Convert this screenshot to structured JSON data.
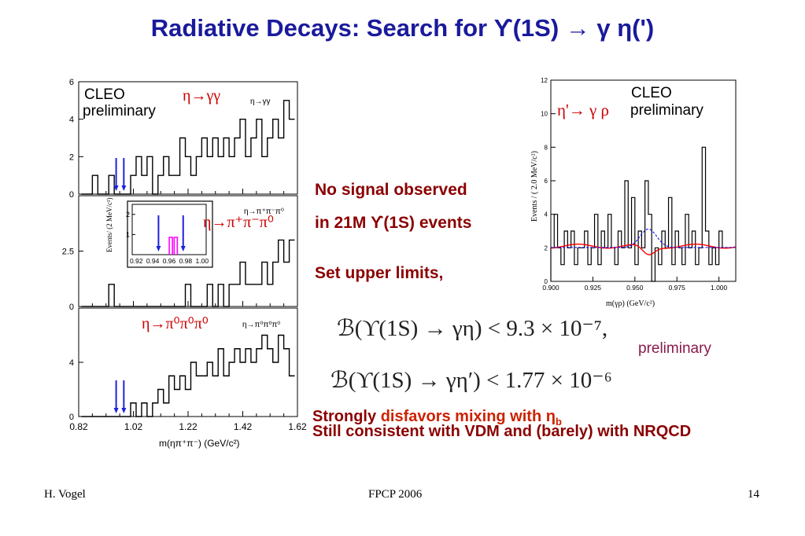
{
  "slide": {
    "title": "Radiative Decays:  Search for  ϒ(1S) → γ η(')",
    "obs_line1": "No signal observed",
    "obs_line2": "in  21M  ϒ(1S) events",
    "obs_line3": "Set upper limits,",
    "formula1": "ℬ(ϒ(1S) → γη) < 9.3 × 10⁻⁷,",
    "formula2": "ℬ(ϒ(1S) → γη′) < 1.77 × 10⁻⁶",
    "preliminary": "preliminary",
    "conclusion1_a": "Strongly",
    "conclusion1_b": "disfavors mixing with η",
    "conclusion1_sub": "b",
    "conclusion2": "Still consistent with VDM and (barely) with NRQCD"
  },
  "footer": {
    "author": "H. Vogel",
    "conference": "FPCP 2006",
    "page": "14"
  },
  "left_plot": {
    "label_cleo": "CLEO",
    "label_prelim": "preliminary",
    "panel1_channel": "η→γγ",
    "panel1_small": "η→γγ",
    "panel2_channel": "η→π⁺π⁻π⁰",
    "panel2_small": "η→π⁺π⁻π⁰",
    "panel3_channel": "η→π⁰π⁰π⁰",
    "panel3_small": "η→π⁰π⁰π⁰",
    "inset_ylabel": "Events/ (2 MeV/c²)",
    "xlabel": "m(ηπ⁺π⁻)  (GeV/c²)",
    "colors": {
      "arrows": "#2020e0",
      "channel": "#cc0000",
      "inset_peak": "#ff00ff"
    }
  },
  "chart_data": [
    {
      "type": "histogram",
      "title": "η→γγ",
      "x_range": [
        0.82,
        1.62
      ],
      "ylim": [
        0,
        6
      ],
      "y_ticks": [
        "0",
        "2",
        "4",
        "6"
      ],
      "x": [
        0.84,
        0.86,
        0.88,
        0.9,
        0.92,
        0.94,
        0.96,
        0.98,
        1.0,
        1.02,
        1.04,
        1.06,
        1.08,
        1.1,
        1.12,
        1.14,
        1.16,
        1.18,
        1.2,
        1.22,
        1.24,
        1.26,
        1.28,
        1.3,
        1.32,
        1.34,
        1.36,
        1.38,
        1.4,
        1.42,
        1.44,
        1.46,
        1.48,
        1.5,
        1.52,
        1.54,
        1.56,
        1.58,
        1.6
      ],
      "values": [
        0,
        0,
        1,
        0,
        0,
        1,
        0,
        0,
        0,
        1,
        2,
        1,
        2,
        0,
        1,
        2,
        1,
        1,
        3,
        2,
        1,
        2,
        3,
        2,
        3,
        2,
        3,
        2,
        3,
        4,
        2,
        3,
        4,
        2,
        3,
        4,
        3,
        5,
        4
      ],
      "arrows_at": [
        0.957,
        0.985
      ]
    },
    {
      "type": "histogram",
      "title": "η→π⁺π⁻π⁰",
      "x_range": [
        0.82,
        1.62
      ],
      "ylim": [
        0,
        5
      ],
      "y_ticks": [
        "0",
        "2.5"
      ],
      "x": [
        0.84,
        0.86,
        0.88,
        0.9,
        0.92,
        0.94,
        0.96,
        0.98,
        1.0,
        1.02,
        1.04,
        1.06,
        1.08,
        1.1,
        1.12,
        1.14,
        1.16,
        1.18,
        1.2,
        1.22,
        1.24,
        1.26,
        1.28,
        1.3,
        1.32,
        1.34,
        1.36,
        1.38,
        1.4,
        1.42,
        1.44,
        1.46,
        1.48,
        1.5,
        1.52,
        1.54,
        1.56,
        1.58,
        1.6
      ],
      "values": [
        0,
        0,
        0,
        0,
        0,
        1,
        0,
        0,
        0,
        0,
        0,
        0,
        0,
        0,
        0,
        0,
        0,
        0,
        0,
        1,
        0,
        0,
        0,
        1,
        0,
        1,
        0,
        1,
        1,
        2,
        1,
        1,
        1,
        2,
        1,
        2,
        3,
        2,
        3
      ],
      "inset": {
        "x_ticks": [
          "0.92",
          "0.94",
          "0.96",
          "0.98",
          "1.00"
        ],
        "y_ticks": [
          "1",
          "2"
        ],
        "peak_x": [
          0.962,
          0.968
        ],
        "arrows_at": [
          0.947,
          0.977
        ]
      }
    },
    {
      "type": "histogram",
      "title": "η→π⁰π⁰π⁰",
      "x_range": [
        0.82,
        1.62
      ],
      "ylim": [
        0,
        8
      ],
      "y_ticks": [
        "0",
        "4"
      ],
      "x_ticks": [
        "0.82",
        "1.02",
        "1.22",
        "1.42",
        "1.62"
      ],
      "x": [
        0.84,
        0.86,
        0.88,
        0.9,
        0.92,
        0.94,
        0.96,
        0.98,
        1.0,
        1.02,
        1.04,
        1.06,
        1.08,
        1.1,
        1.12,
        1.14,
        1.16,
        1.18,
        1.2,
        1.22,
        1.24,
        1.26,
        1.28,
        1.3,
        1.32,
        1.34,
        1.36,
        1.38,
        1.4,
        1.42,
        1.44,
        1.46,
        1.48,
        1.5,
        1.52,
        1.54,
        1.56,
        1.58,
        1.6
      ],
      "values": [
        0,
        0,
        0,
        0,
        0,
        0,
        0,
        0,
        0,
        1,
        0,
        1,
        0,
        1,
        2,
        1,
        3,
        2,
        3,
        2,
        4,
        3,
        3,
        4,
        3,
        5,
        3,
        4,
        5,
        4,
        5,
        4,
        5,
        6,
        5,
        4,
        6,
        5,
        3
      ],
      "arrows_at": [
        0.957,
        0.985
      ]
    },
    {
      "type": "histogram",
      "title": "η'→γρ",
      "label_cleo": "CLEO",
      "label_prelim": "preliminary",
      "channel": "η'→ γ ρ",
      "x_range": [
        0.9,
        1.01
      ],
      "ylim": [
        0,
        12
      ],
      "x_ticks": [
        "0.900",
        "0.925",
        "0.950",
        "0.975",
        "1.000"
      ],
      "y_ticks": [
        "0",
        "2",
        "4",
        "6",
        "8",
        "10",
        "12"
      ],
      "xlabel": "m(γρ)  (GeV/c²)",
      "ylabel": "Events / ( 2.0 MeV/c²)",
      "x": [
        0.901,
        0.903,
        0.905,
        0.907,
        0.909,
        0.911,
        0.913,
        0.915,
        0.917,
        0.919,
        0.921,
        0.923,
        0.925,
        0.927,
        0.929,
        0.931,
        0.933,
        0.935,
        0.937,
        0.939,
        0.941,
        0.943,
        0.945,
        0.947,
        0.949,
        0.951,
        0.953,
        0.955,
        0.957,
        0.959,
        0.961,
        0.963,
        0.965,
        0.967,
        0.969,
        0.971,
        0.973,
        0.975,
        0.977,
        0.979,
        0.981,
        0.983,
        0.985,
        0.987,
        0.989,
        0.991,
        0.993,
        0.995,
        0.997,
        0.999,
        1.001,
        1.003,
        1.005
      ],
      "values": [
        2,
        4,
        2,
        1,
        3,
        2,
        3,
        1,
        2,
        2,
        3,
        1,
        2,
        4,
        1,
        3,
        2,
        4,
        2,
        1,
        3,
        2,
        6,
        2,
        5,
        1,
        3,
        2,
        6,
        4,
        0,
        2,
        1,
        3,
        2,
        5,
        1,
        3,
        2,
        1,
        4,
        2,
        3,
        1,
        2,
        8,
        3,
        1,
        2,
        1,
        3,
        2,
        2
      ],
      "fit_level": 2.1,
      "fit_dip_at": 0.958,
      "signal_peak_at": 0.958,
      "colors": {
        "fit": "#ff0000",
        "signal": "#0000ff",
        "channel": "#cc0000"
      }
    }
  ]
}
